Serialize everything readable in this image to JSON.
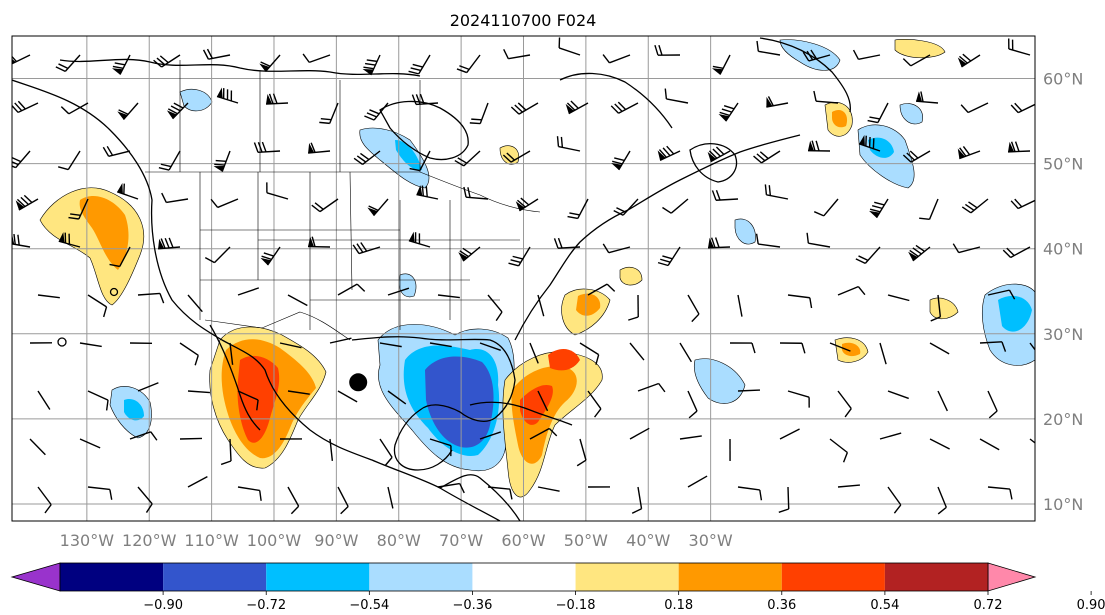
{
  "title": "2024110700 F024",
  "map": {
    "lon_range": [
      -142,
      22
    ],
    "lat_range": [
      8,
      65
    ],
    "lon_ticks": [
      {
        "value": -130,
        "label": "130°W"
      },
      {
        "value": -120,
        "label": "120°W"
      },
      {
        "value": -110,
        "label": "110°W"
      },
      {
        "value": -100,
        "label": "100°W"
      },
      {
        "value": -90,
        "label": "90°W"
      },
      {
        "value": -80,
        "label": "80°W"
      },
      {
        "value": -70,
        "label": "70°W"
      },
      {
        "value": -60,
        "label": "60°W"
      },
      {
        "value": -50,
        "label": "50°W"
      },
      {
        "value": -40,
        "label": "40°W"
      },
      {
        "value": -30,
        "label": "30°W"
      }
    ],
    "lat_ticks": [
      {
        "value": 60,
        "label": "60°N"
      },
      {
        "value": 50,
        "label": "50°N"
      },
      {
        "value": 40,
        "label": "40°N"
      },
      {
        "value": 30,
        "label": "30°N"
      },
      {
        "value": 20,
        "label": "20°N"
      },
      {
        "value": 10,
        "label": "10°N"
      }
    ],
    "grid": true,
    "storm_center": {
      "lon": -86.5,
      "lat": 24.3
    }
  },
  "colorbar": {
    "levels": [
      "−0.90",
      "−0.72",
      "−0.54",
      "−0.36",
      "−0.18",
      "0.18",
      "0.36",
      "0.54",
      "0.72",
      "0.90"
    ],
    "colors": [
      "#9933cc",
      "#000080",
      "#3355cc",
      "#00bfff",
      "#aaddff",
      "#ffffff",
      "#ffe680",
      "#ff9900",
      "#ff4000",
      "#b22222",
      "#ff88aa"
    ],
    "extend": "both"
  },
  "icons": {
    "storm": "storm-center-icon",
    "barb": "wind-barb-icon"
  }
}
